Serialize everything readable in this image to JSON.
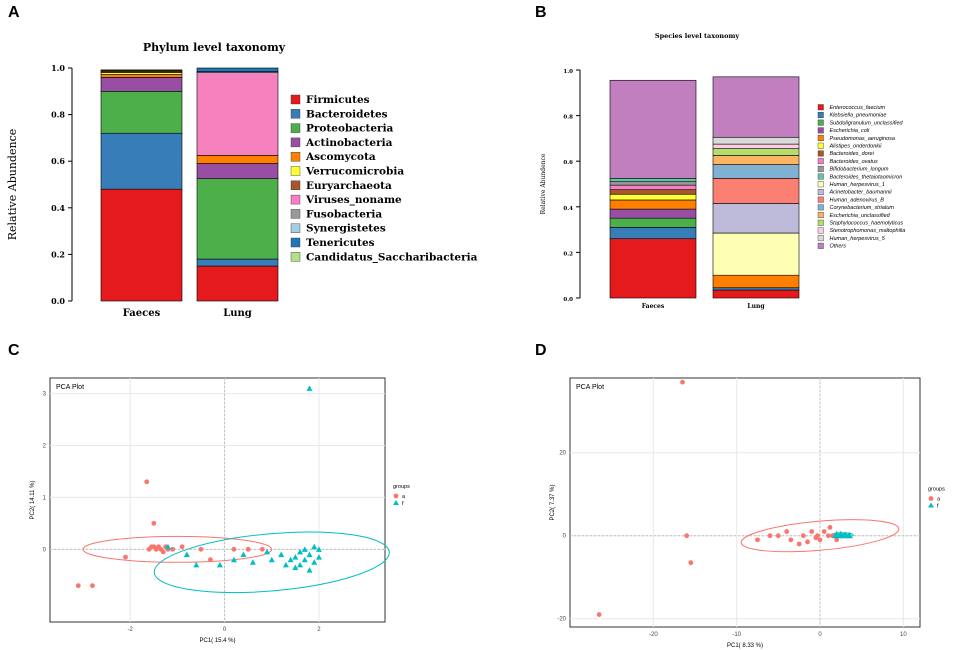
{
  "panels": {
    "a": "A",
    "b": "B",
    "c": "C",
    "d": "D"
  },
  "chart_data": [
    {
      "type": "bar",
      "stacked": true,
      "title": "Phylum level taxonomy",
      "ylabel": "Relative Abundence",
      "xlabel": "",
      "ylim": [
        0,
        1
      ],
      "yticks": [
        "0.0",
        "0.2",
        "0.4",
        "0.6",
        "0.8",
        "1.0"
      ],
      "categories": [
        "Faeces",
        "Lung"
      ],
      "series": [
        {
          "name": "Firmicutes",
          "color": "#e41a1c",
          "values": [
            0.48,
            0.15
          ]
        },
        {
          "name": "Bacteroidetes",
          "color": "#377eb8",
          "values": [
            0.24,
            0.03
          ]
        },
        {
          "name": "Proteobacteria",
          "color": "#4daf4a",
          "values": [
            0.18,
            0.345
          ]
        },
        {
          "name": "Actinobacteria",
          "color": "#984ea3",
          "values": [
            0.06,
            0.065
          ]
        },
        {
          "name": "Ascomycota",
          "color": "#ff7f00",
          "values": [
            0.012,
            0.035
          ]
        },
        {
          "name": "Verrucomicrobia",
          "color": "#ffff33",
          "values": [
            0.008,
            0.0
          ]
        },
        {
          "name": "Euryarchaeota",
          "color": "#a65628",
          "values": [
            0.006,
            0.0
          ]
        },
        {
          "name": "Viruses_noname",
          "color": "#f781bf",
          "values": [
            0.0,
            0.355
          ]
        },
        {
          "name": "Fusobacteria",
          "color": "#999999",
          "values": [
            0.003,
            0.0
          ]
        },
        {
          "name": "Synergistetes",
          "color": "#a6cee3",
          "values": [
            0.0,
            0.005
          ]
        },
        {
          "name": "Tenericutes",
          "color": "#1f78b4",
          "values": [
            0.0,
            0.015
          ]
        },
        {
          "name": "Candidatus_Saccharibacteria",
          "color": "#b2df8a",
          "values": [
            0.003,
            0.0
          ]
        }
      ]
    },
    {
      "type": "bar",
      "stacked": true,
      "title": "Species level taxonomy",
      "ylabel": "Relative Abundence",
      "xlabel": "",
      "ylim": [
        0,
        1
      ],
      "yticks": [
        "0.0",
        "0.2",
        "0.4",
        "0.6",
        "0.8",
        "1.0"
      ],
      "categories": [
        "Faeces",
        "Lung"
      ],
      "series": [
        {
          "name": "Enterococcus_faecium",
          "color": "#e41a1c",
          "values": [
            0.26,
            0.035
          ]
        },
        {
          "name": "Klebsiella_pneumoniae",
          "color": "#377eb8",
          "values": [
            0.05,
            0.01
          ]
        },
        {
          "name": "Subdoligranulum_unclassified",
          "color": "#4daf4a",
          "values": [
            0.04,
            0.0
          ]
        },
        {
          "name": "Escherichia_coli",
          "color": "#984ea3",
          "values": [
            0.04,
            0.0
          ]
        },
        {
          "name": "Pseudomonas_aeruginosa",
          "color": "#ff7f00",
          "values": [
            0.04,
            0.055
          ]
        },
        {
          "name": "Alistipes_onderdonkii",
          "color": "#ffff33",
          "values": [
            0.025,
            0.0
          ]
        },
        {
          "name": "Bacteroides_dorei",
          "color": "#a65628",
          "values": [
            0.02,
            0.0
          ]
        },
        {
          "name": "Bacteroides_ovatus",
          "color": "#f781bf",
          "values": [
            0.02,
            0.0
          ]
        },
        {
          "name": "Bifidobacterium_longum",
          "color": "#999999",
          "values": [
            0.015,
            0.0
          ]
        },
        {
          "name": "Bacteroides_thetaiotaomicron",
          "color": "#66c2a5",
          "values": [
            0.015,
            0.0
          ]
        },
        {
          "name": "Human_herpesvirus_1",
          "color": "#ffffb3",
          "values": [
            0.0,
            0.185
          ]
        },
        {
          "name": "Acinetobacter_baumannii",
          "color": "#bebada",
          "values": [
            0.0,
            0.13
          ]
        },
        {
          "name": "Human_adenovirus_B",
          "color": "#fb8072",
          "values": [
            0.0,
            0.11
          ]
        },
        {
          "name": "Corynebacterium_striatum",
          "color": "#80b1d3",
          "values": [
            0.0,
            0.06
          ]
        },
        {
          "name": "Escherichia_unclassified",
          "color": "#fdb462",
          "values": [
            0.0,
            0.04
          ]
        },
        {
          "name": "Staphylococcus_haemolyticus",
          "color": "#b3de69",
          "values": [
            0.0,
            0.03
          ]
        },
        {
          "name": "Stenotrophomonas_maltophilia",
          "color": "#fccde5",
          "values": [
            0.0,
            0.02
          ]
        },
        {
          "name": "Human_herpesvirus_5",
          "color": "#d9d9d9",
          "values": [
            0.0,
            0.03
          ]
        },
        {
          "name": "Others",
          "color": "#c17fc0",
          "values": [
            0.43,
            0.265
          ]
        }
      ],
      "legend_labels": [
        "Enterococcus_faecium",
        "Klebsiella_pneumoniae",
        "Subdoligranulum_unclassified",
        "Escherichia_coli",
        "Pseudomonas_aeruginosa",
        "Alistipes_onderdonkii",
        "Bacteroides_dorei",
        "Bacteroides_ovatus",
        "Bifidobacterium_longum",
        "Bacteroides_thetaiotaomicron",
        "Human_herpesvirus_1",
        "Acinetobacter_baumannii",
        "Human_adenovirus_B",
        "Corynebacterium_striatum",
        "Escherichia_unclassified",
        "Staphylococcus_haemolyticus",
        "Stenotrophomonas_maltophilia",
        "Human_herpesvirus_5",
        "Others"
      ]
    },
    {
      "type": "scatter",
      "title": "PCA Plot",
      "xlabel": "PC1( 15.4 %)",
      "ylabel": "PC2( 14.11 %)",
      "xlim": [
        -3.7,
        3.4
      ],
      "ylim": [
        -1.4,
        3.3
      ],
      "xticks": [
        -2,
        0,
        2
      ],
      "yticks": [
        0,
        1,
        2,
        3
      ],
      "legend_title": "groups",
      "series": [
        {
          "name": "a",
          "color": "#f8766d",
          "shape": "circle",
          "points": [
            [
              -3.1,
              -0.7
            ],
            [
              -2.8,
              -0.7
            ],
            [
              -2.1,
              -0.15
            ],
            [
              -1.65,
              1.3
            ],
            [
              -1.5,
              0.5
            ],
            [
              -1.6,
              0.0
            ],
            [
              -1.55,
              0.05
            ],
            [
              -1.5,
              0.05
            ],
            [
              -1.45,
              0.0
            ],
            [
              -1.4,
              0.05
            ],
            [
              -1.35,
              0.0
            ],
            [
              -1.3,
              -0.05
            ],
            [
              -1.25,
              0.05
            ],
            [
              -1.2,
              0.0
            ],
            [
              -1.1,
              0.0
            ],
            [
              -0.9,
              0.05
            ],
            [
              -0.5,
              0.0
            ],
            [
              -0.3,
              -0.2
            ],
            [
              0.2,
              0.0
            ],
            [
              0.5,
              0.0
            ],
            [
              0.8,
              0.0
            ]
          ],
          "ellipse": {
            "cx": -1.0,
            "cy": 0.0,
            "rx": 2.0,
            "ry": 0.25,
            "angle": 0
          }
        },
        {
          "name": "f",
          "color": "#00bfc4",
          "shape": "triangle",
          "points": [
            [
              1.8,
              3.1
            ],
            [
              -1.2,
              0.05
            ],
            [
              -0.8,
              -0.1
            ],
            [
              -0.6,
              -0.3
            ],
            [
              -0.1,
              -0.3
            ],
            [
              0.2,
              -0.2
            ],
            [
              0.4,
              -0.1
            ],
            [
              0.6,
              -0.25
            ],
            [
              0.9,
              -0.05
            ],
            [
              1.0,
              -0.2
            ],
            [
              1.2,
              -0.1
            ],
            [
              1.3,
              -0.3
            ],
            [
              1.4,
              -0.2
            ],
            [
              1.5,
              -0.15
            ],
            [
              1.5,
              -0.35
            ],
            [
              1.6,
              -0.05
            ],
            [
              1.6,
              -0.3
            ],
            [
              1.7,
              0.0
            ],
            [
              1.7,
              -0.2
            ],
            [
              1.8,
              -0.1
            ],
            [
              1.8,
              -0.4
            ],
            [
              1.9,
              0.05
            ],
            [
              1.9,
              -0.25
            ],
            [
              2.0,
              -0.15
            ],
            [
              2.0,
              0.0
            ]
          ],
          "ellipse": {
            "cx": 1.0,
            "cy": -0.25,
            "rx": 2.5,
            "ry": 0.55,
            "angle": -5
          }
        }
      ]
    },
    {
      "type": "scatter",
      "title": "PCA Plot",
      "xlabel": "PC1( 8.33 %)",
      "ylabel": "PC2( 7.37 %)",
      "xlim": [
        -30,
        12
      ],
      "ylim": [
        -22,
        38
      ],
      "xticks": [
        -20,
        -10,
        0,
        10
      ],
      "yticks": [
        -20,
        0,
        20
      ],
      "legend_title": "groups",
      "series": [
        {
          "name": "a",
          "color": "#f8766d",
          "shape": "circle",
          "points": [
            [
              -26.5,
              -19
            ],
            [
              -16.5,
              37
            ],
            [
              -16,
              0
            ],
            [
              -15.5,
              -6.5
            ],
            [
              -7.5,
              -1
            ],
            [
              -6,
              0
            ],
            [
              -5,
              0
            ],
            [
              -4,
              1
            ],
            [
              -3.5,
              -1
            ],
            [
              -2.5,
              -2
            ],
            [
              -2,
              0
            ],
            [
              -1.5,
              -1.5
            ],
            [
              -1,
              1
            ],
            [
              -0.5,
              -0.5
            ],
            [
              -0.3,
              0
            ],
            [
              0,
              -1
            ],
            [
              0.5,
              1
            ],
            [
              1,
              0
            ],
            [
              1.5,
              0
            ],
            [
              2,
              -1
            ],
            [
              2.5,
              0
            ],
            [
              3,
              0
            ],
            [
              1.2,
              2
            ]
          ],
          "ellipse": {
            "cx": 0,
            "cy": 0,
            "rx": 9.5,
            "ry": 3.5,
            "angle": -5
          }
        },
        {
          "name": "f",
          "color": "#00bfc4",
          "shape": "triangle",
          "points": [
            [
              1.8,
              0
            ],
            [
              2,
              0.5
            ],
            [
              2.3,
              0
            ],
            [
              2.5,
              0.5
            ],
            [
              2.8,
              0
            ],
            [
              3,
              0.3
            ],
            [
              3.2,
              0
            ],
            [
              3.5,
              0.2
            ],
            [
              3.6,
              0
            ]
          ],
          "ellipse": {
            "cx": 2.7,
            "cy": 0.2,
            "rx": 1.3,
            "ry": 0.5,
            "angle": 0
          }
        }
      ]
    }
  ]
}
